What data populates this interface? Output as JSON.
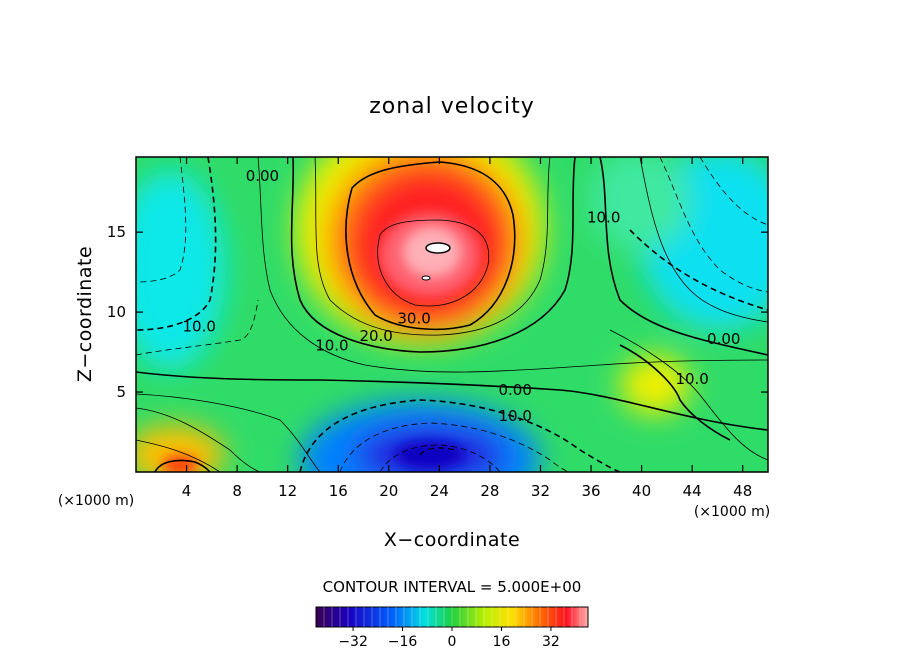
{
  "chart_data": {
    "type": "heatmap",
    "title": "zonal velocity",
    "xlabel": "X−coordinate",
    "ylabel": "Z−coordinate",
    "x_unit_label": "(×1000 m)",
    "x_unit_label_right": "(×1000 m)",
    "xlim": [
      0,
      50
    ],
    "ylim": [
      0,
      19.7
    ],
    "x_ticks": [
      4,
      8,
      12,
      16,
      20,
      24,
      28,
      32,
      36,
      40,
      44,
      48
    ],
    "y_ticks": [
      5,
      10,
      15
    ],
    "contour_interval_text": "CONTOUR INTERVAL = 5.000E+00",
    "contour_interval": 5.0,
    "colorbar": {
      "range": [
        -44,
        44
      ],
      "ticks": [
        -32,
        -16,
        0,
        16,
        32
      ],
      "colormap": "rainbow (purple→blue→cyan→green→yellow→red→pink)"
    },
    "contour_labels": [
      {
        "text": "0.00",
        "x": 10,
        "z": 18.2
      },
      {
        "text": "10.0",
        "x": 37,
        "z": 15.6
      },
      {
        "text": "10.0",
        "x": 5,
        "z": 8.8
      },
      {
        "text": "30.0",
        "x": 22,
        "z": 9.3
      },
      {
        "text": "20.0",
        "x": 19,
        "z": 8.2
      },
      {
        "text": "10.0",
        "x": 15.5,
        "z": 7.6
      },
      {
        "text": "0.00",
        "x": 30,
        "z": 4.8
      },
      {
        "text": "10.0",
        "x": 30,
        "z": 3.2
      },
      {
        "text": "0.00",
        "x": 46.5,
        "z": 8.0
      },
      {
        "text": "10.0",
        "x": 44,
        "z": 5.5
      }
    ],
    "features": [
      {
        "kind": "maximum",
        "x": 23,
        "z": 14,
        "value_approx": 40
      },
      {
        "kind": "minimum",
        "x": 24,
        "z": 1.5,
        "value_approx": -35
      },
      {
        "kind": "local_max",
        "x": 4,
        "z": 0.5,
        "value_approx": 20
      }
    ]
  }
}
